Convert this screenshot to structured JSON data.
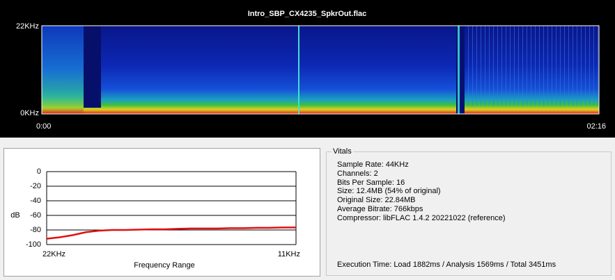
{
  "spectrogram": {
    "title": "Intro_SBP_CX4235_SpkrOut.flac",
    "freq_top": "22KHz",
    "freq_bottom": "0KHz",
    "time_start": "0:00",
    "time_end": "02:16"
  },
  "chart_data": {
    "type": "line",
    "ylabel": "dB",
    "xlabel": "Frequency Range",
    "categories": [
      "22KHz",
      null,
      null,
      null,
      null,
      null,
      null,
      null,
      null,
      null,
      null,
      null,
      null,
      null,
      null,
      null,
      null,
      null,
      null,
      "11KHz"
    ],
    "values": [
      -92,
      -90,
      -87,
      -83,
      -81,
      -80,
      -80,
      -79.5,
      -79,
      -79,
      -78.5,
      -78,
      -78,
      -78,
      -77.5,
      -77.5,
      -77,
      -77,
      -76.5,
      -76.5
    ],
    "color": "#e01010",
    "ylim": [
      -100,
      0
    ],
    "yticks": [
      0,
      -20,
      -40,
      -60,
      -80,
      -100
    ],
    "grid": true
  },
  "vitals": {
    "title": "Vitals",
    "lines": [
      "Sample Rate: 44KHz",
      "Channels: 2",
      "Bits Per Sample: 16",
      "Size: 12.4MB (54% of original)",
      "Original Size: 22.84MB",
      "Average Bitrate: 766kbps",
      "Compressor: libFLAC 1.4.2 20221022 (reference)"
    ],
    "execution": "Execution Time: Load 1882ms / Analysis 1569ms / Total 3451ms"
  }
}
